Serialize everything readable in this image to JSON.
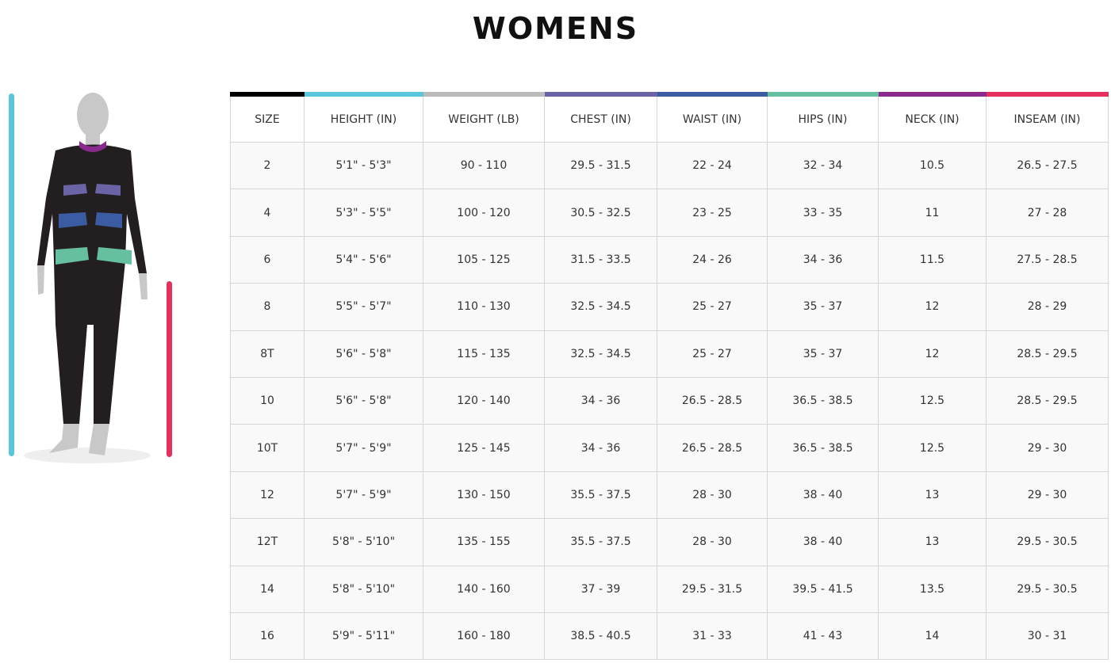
{
  "title": "WOMENS",
  "columns": [
    {
      "label": "SIZE",
      "color": "#000000"
    },
    {
      "label": "HEIGHT (IN)",
      "color": "#5bc5de"
    },
    {
      "label": "WEIGHT (LB)",
      "color": "#bbbbbb"
    },
    {
      "label": "CHEST (IN)",
      "color": "#6a64a6"
    },
    {
      "label": "WAIST (IN)",
      "color": "#3b5ba2"
    },
    {
      "label": "HIPS (IN)",
      "color": "#66c0a0"
    },
    {
      "label": "NECK (IN)",
      "color": "#8b2a8e"
    },
    {
      "label": "INSEAM (IN)",
      "color": "#e5305e"
    }
  ],
  "rows": [
    [
      "2",
      "5'1\" - 5'3\"",
      "90 - 110",
      "29.5 - 31.5",
      "22 - 24",
      "32 - 34",
      "10.5",
      "26.5 - 27.5"
    ],
    [
      "4",
      "5'3\" - 5'5\"",
      "100 - 120",
      "30.5 - 32.5",
      "23 - 25",
      "33 - 35",
      "11",
      "27 - 28"
    ],
    [
      "6",
      "5'4\" - 5'6\"",
      "105 - 125",
      "31.5 - 33.5",
      "24 - 26",
      "34 - 36",
      "11.5",
      "27.5 - 28.5"
    ],
    [
      "8",
      "5'5\" - 5'7\"",
      "110 - 130",
      "32.5 - 34.5",
      "25 - 27",
      "35 - 37",
      "12",
      "28 - 29"
    ],
    [
      "8T",
      "5'6\" - 5'8\"",
      "115 - 135",
      "32.5 - 34.5",
      "25 - 27",
      "35 - 37",
      "12",
      "28.5 - 29.5"
    ],
    [
      "10",
      "5'6\" - 5'8\"",
      "120 - 140",
      "34 - 36",
      "26.5 - 28.5",
      "36.5 - 38.5",
      "12.5",
      "28.5 - 29.5"
    ],
    [
      "10T",
      "5'7\" - 5'9\"",
      "125 - 145",
      "34 - 36",
      "26.5 - 28.5",
      "36.5 - 38.5",
      "12.5",
      "29 - 30"
    ],
    [
      "12",
      "5'7\" - 5'9\"",
      "130 - 150",
      "35.5 - 37.5",
      "28 - 30",
      "38 - 40",
      "13",
      "29 - 30"
    ],
    [
      "12T",
      "5'8\" - 5'10\"",
      "135 - 155",
      "35.5 - 37.5",
      "28 - 30",
      "38 - 40",
      "13",
      "29.5 - 30.5"
    ],
    [
      "14",
      "5'8\" - 5'10\"",
      "140 - 160",
      "37 - 39",
      "29.5 - 31.5",
      "39.5 - 41.5",
      "13.5",
      "29.5 - 30.5"
    ],
    [
      "16",
      "5'9\" - 5'11\"",
      "160 - 180",
      "38.5 - 40.5",
      "31 - 33",
      "41 - 43",
      "14",
      "30 - 31"
    ]
  ]
}
